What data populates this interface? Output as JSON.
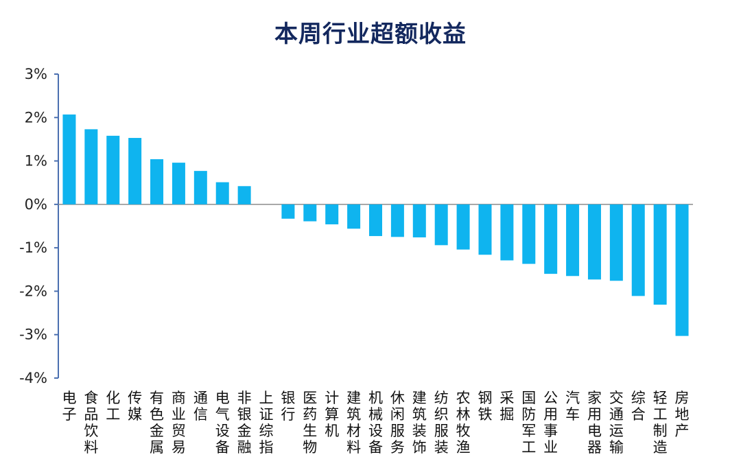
{
  "colors": {
    "bar": "#0fb4ef",
    "axis": "#4a6fb0",
    "zero_line": "#8c8c8c",
    "title": "#13285e"
  },
  "chart_data": {
    "type": "bar",
    "title": "本周行业超额收益",
    "xlabel": "",
    "ylabel": "",
    "ylim": [
      -4,
      3
    ],
    "ytick_values": [
      3,
      2,
      1,
      0,
      -1,
      -2,
      -3,
      -4
    ],
    "ytick_labels": [
      "3%",
      "2%",
      "1%",
      "0%",
      "-1%",
      "-2%",
      "-3%",
      "-4%"
    ],
    "grid": false,
    "legend": "none",
    "categories": [
      "电子",
      "食品饮料",
      "化工",
      "传媒",
      "有色金属",
      "商业贸易",
      "通信",
      "电气设备",
      "非银金融",
      "上证综指",
      "银行",
      "医药生物",
      "计算机",
      "建筑材料",
      "机械设备",
      "休闲服务",
      "建筑装饰",
      "纺织服装",
      "农林牧渔",
      "钢铁",
      "采掘",
      "国防军工",
      "公用事业",
      "汽车",
      "家用电器",
      "交通运输",
      "综合",
      "轻工制造",
      "房地产"
    ],
    "values": [
      2.07,
      1.73,
      1.58,
      1.53,
      1.04,
      0.96,
      0.77,
      0.51,
      0.42,
      0.0,
      -0.33,
      -0.39,
      -0.46,
      -0.56,
      -0.73,
      -0.75,
      -0.76,
      -0.94,
      -1.04,
      -1.16,
      -1.29,
      -1.37,
      -1.6,
      -1.65,
      -1.73,
      -1.76,
      -2.11,
      -2.31,
      -3.03
    ]
  }
}
